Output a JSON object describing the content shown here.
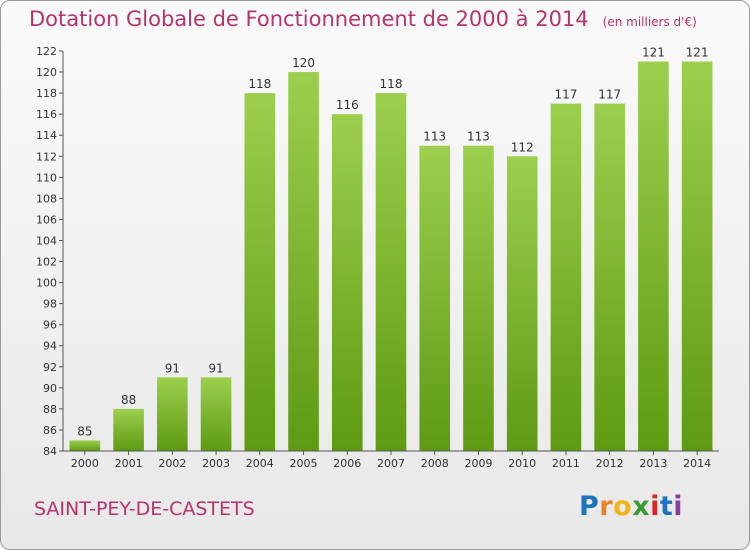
{
  "title": "Dotation Globale de Fonctionnement de 2000 à 2014",
  "unit": "(en milliers d'€)",
  "commune": "SAINT-PEY-DE-CASTETS",
  "logo": "Proxiti",
  "colors": {
    "bar_top": "#9ccf4e",
    "bar_bottom": "#5e9a12",
    "title": "#b8336a"
  },
  "chart_data": {
    "type": "bar",
    "title": "Dotation Globale de Fonctionnement de 2000 à 2014",
    "categories": [
      "2000",
      "2001",
      "2002",
      "2003",
      "2004",
      "2005",
      "2006",
      "2007",
      "2008",
      "2009",
      "2010",
      "2011",
      "2012",
      "2013",
      "2014"
    ],
    "values": [
      85,
      88,
      91,
      91,
      118,
      120,
      116,
      118,
      113,
      113,
      112,
      117,
      117,
      121,
      121
    ],
    "ylim": [
      84,
      122
    ],
    "yticks": [
      84,
      86,
      88,
      90,
      92,
      94,
      96,
      98,
      100,
      102,
      104,
      106,
      108,
      110,
      112,
      114,
      116,
      118,
      120,
      122
    ],
    "grid": false,
    "legend": "none",
    "data_labels": true
  }
}
